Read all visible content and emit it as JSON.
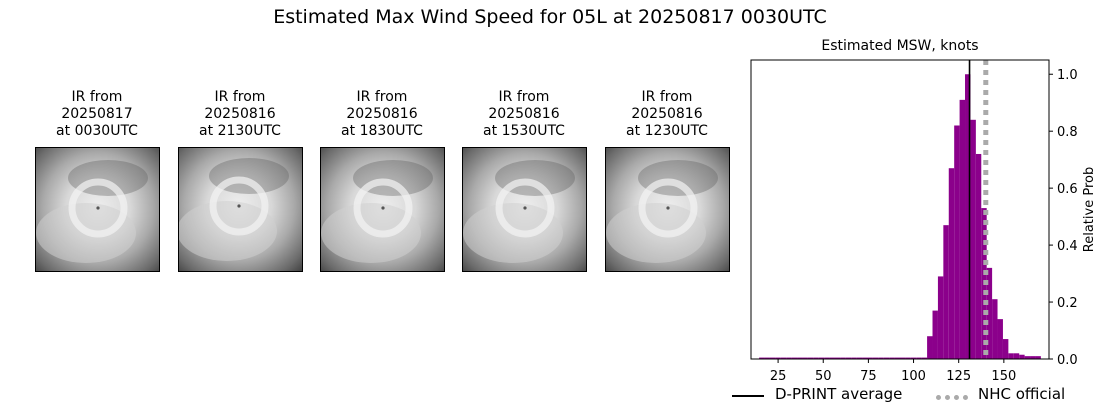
{
  "figure": {
    "title": "Estimated Max Wind Speed for 05L at 20250817 0030UTC"
  },
  "ir_panels": [
    {
      "line1": "IR from",
      "line2": "20250817",
      "line3": "at 0030UTC"
    },
    {
      "line1": "IR from",
      "line2": "20250816",
      "line3": "at 2130UTC"
    },
    {
      "line1": "IR from",
      "line2": "20250816",
      "line3": "at 1830UTC"
    },
    {
      "line1": "IR from",
      "line2": "20250816",
      "line3": "at 1530UTC"
    },
    {
      "line1": "IR from",
      "line2": "20250816",
      "line3": "at 1230UTC"
    }
  ],
  "chart_data": {
    "type": "bar",
    "title": "Estimated MSW, knots",
    "xlabel": "",
    "ylabel": "Relative Prob",
    "xlim": [
      10,
      175
    ],
    "ylim": [
      0,
      1.05
    ],
    "xticks": [
      25,
      50,
      75,
      100,
      125,
      150
    ],
    "yticks": [
      0.0,
      0.2,
      0.4,
      0.6,
      0.8,
      1.0
    ],
    "ytick_labels": [
      "0.0",
      "0.2",
      "0.4",
      "0.6",
      "0.8",
      "1.0"
    ],
    "y_axis_side": "right",
    "bin_width": 3,
    "bins": [
      {
        "x": 16,
        "value": 0.005
      },
      {
        "x": 19,
        "value": 0.005
      },
      {
        "x": 22,
        "value": 0.005
      },
      {
        "x": 25,
        "value": 0.005
      },
      {
        "x": 28,
        "value": 0.005
      },
      {
        "x": 31,
        "value": 0.005
      },
      {
        "x": 34,
        "value": 0.005
      },
      {
        "x": 37,
        "value": 0.005
      },
      {
        "x": 40,
        "value": 0.005
      },
      {
        "x": 43,
        "value": 0.005
      },
      {
        "x": 46,
        "value": 0.005
      },
      {
        "x": 49,
        "value": 0.005
      },
      {
        "x": 52,
        "value": 0.005
      },
      {
        "x": 55,
        "value": 0.005
      },
      {
        "x": 58,
        "value": 0.005
      },
      {
        "x": 61,
        "value": 0.005
      },
      {
        "x": 64,
        "value": 0.005
      },
      {
        "x": 67,
        "value": 0.005
      },
      {
        "x": 70,
        "value": 0.005
      },
      {
        "x": 73,
        "value": 0.005
      },
      {
        "x": 76,
        "value": 0.005
      },
      {
        "x": 79,
        "value": 0.005
      },
      {
        "x": 82,
        "value": 0.005
      },
      {
        "x": 85,
        "value": 0.005
      },
      {
        "x": 88,
        "value": 0.005
      },
      {
        "x": 91,
        "value": 0.005
      },
      {
        "x": 94,
        "value": 0.005
      },
      {
        "x": 97,
        "value": 0.005
      },
      {
        "x": 100,
        "value": 0.005
      },
      {
        "x": 103,
        "value": 0.005
      },
      {
        "x": 106,
        "value": 0.005
      },
      {
        "x": 109,
        "value": 0.08
      },
      {
        "x": 112,
        "value": 0.17
      },
      {
        "x": 115,
        "value": 0.29
      },
      {
        "x": 118,
        "value": 0.47
      },
      {
        "x": 121,
        "value": 0.67
      },
      {
        "x": 124,
        "value": 0.82
      },
      {
        "x": 127,
        "value": 0.91
      },
      {
        "x": 130,
        "value": 1.0
      },
      {
        "x": 133,
        "value": 0.84
      },
      {
        "x": 136,
        "value": 0.72
      },
      {
        "x": 139,
        "value": 0.53
      },
      {
        "x": 142,
        "value": 0.32
      },
      {
        "x": 145,
        "value": 0.21
      },
      {
        "x": 148,
        "value": 0.14
      },
      {
        "x": 151,
        "value": 0.07
      },
      {
        "x": 154,
        "value": 0.02
      },
      {
        "x": 157,
        "value": 0.02
      },
      {
        "x": 160,
        "value": 0.015
      },
      {
        "x": 163,
        "value": 0.01
      },
      {
        "x": 166,
        "value": 0.01
      },
      {
        "x": 169,
        "value": 0.01
      }
    ],
    "bar_color": "#8b008b",
    "reference_lines": [
      {
        "name": "D-PRINT average",
        "x": 131,
        "color": "#000000",
        "style": "solid"
      },
      {
        "name": "NHC official",
        "x": 140,
        "color": "#aaaaaa",
        "style": "dotted"
      }
    ],
    "legend_position": "bottom"
  }
}
